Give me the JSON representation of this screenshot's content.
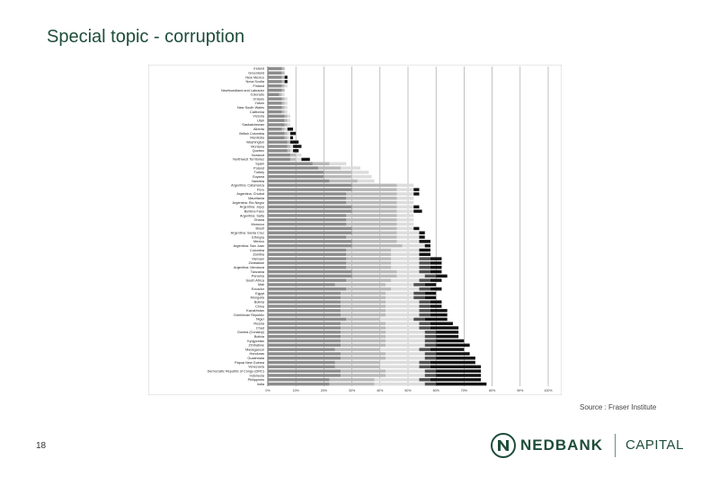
{
  "slide": {
    "title": "Special topic - corruption",
    "source": "Source : Fraser Institute",
    "page_number": "18"
  },
  "brand": {
    "name": "NEDBANK",
    "division": "CAPITAL",
    "color": "#1f4d3b",
    "icon": "nedbank-n-logo"
  },
  "chart_data": {
    "type": "bar",
    "orientation": "horizontal",
    "stacked": true,
    "title": "",
    "xlabel": "",
    "ylabel": "",
    "xlim": [
      0,
      100
    ],
    "x_ticks": [
      "0%",
      "10%",
      "20%",
      "30%",
      "40%",
      "50%",
      "60%",
      "70%",
      "80%",
      "90%",
      "100%"
    ],
    "grid": true,
    "legend": "none",
    "segment_colors": [
      "#8c8c8c",
      "#b8b8b8",
      "#dcdcdc",
      "#505050",
      "#141414"
    ],
    "categories": [
      "Ireland",
      "Greenland",
      "New Mexico",
      "Nova Scotia",
      "Finland",
      "Newfoundland and Labrador",
      "Colorado",
      "Ontario",
      "Yukon",
      "New South Wales",
      "California",
      "Victoria",
      "Utah",
      "Saskatchewan",
      "Alberta",
      "British Columbia",
      "Manitoba",
      "Washington",
      "Montana",
      "Quebec",
      "Nunavut",
      "Northwest Territories",
      "Spain",
      "Poland",
      "Turkey",
      "Guyana",
      "Namibia",
      "Argentina: Catamarca",
      "Peru",
      "Argentina: Chubut",
      "Mauritania",
      "Argentina: Rio Negro",
      "Argentina: Jujuy",
      "Burkina Faso",
      "Argentina: Salta",
      "Ghana",
      "Morocco",
      "Brazil",
      "Argentina: Santa Cruz",
      "Ethiopia",
      "Mexico",
      "Argentina: San Juan",
      "Colombia",
      "Zambia",
      "Vietnam",
      "Zimbabwe",
      "Argentina: Mendoza",
      "Tanzania",
      "Panama",
      "South Africa",
      "Mali",
      "Ecuador",
      "Egypt",
      "Mongolia",
      "Bolivia",
      "China",
      "Kazakhstan",
      "Dominican Republic",
      "Niger",
      "Russia",
      "Chad",
      "Guinea (Conakry)",
      "Bolivia",
      "Kyrgyzstan",
      "Zimbabwe",
      "Madagascar",
      "Honduras",
      "Guatemala",
      "Papua New Guinea",
      "Venezuela",
      "Democratic Republic of Congo (DRC)",
      "Indonesia",
      "Philippines",
      "India"
    ],
    "series": [
      {
        "values": [
          5,
          5,
          5,
          5,
          5,
          5,
          4,
          5,
          5,
          5,
          5,
          6,
          6,
          6,
          5,
          6,
          6,
          7,
          7,
          7,
          8,
          8,
          16,
          18,
          20,
          20,
          22,
          30,
          30,
          28,
          28,
          28,
          30,
          30,
          28,
          28,
          28,
          30,
          30,
          28,
          30,
          30,
          28,
          28,
          28,
          28,
          28,
          30,
          30,
          28,
          24,
          28,
          26,
          26,
          26,
          26,
          26,
          26,
          28,
          26,
          26,
          26,
          26,
          26,
          26,
          24,
          26,
          26,
          24,
          24,
          26,
          26,
          22,
          22
        ]
      },
      {
        "values": [
          1,
          1,
          1,
          1,
          1,
          1,
          1,
          1,
          1,
          1,
          1,
          1,
          1,
          1,
          1,
          1,
          1,
          1,
          1,
          1,
          2,
          2,
          6,
          8,
          10,
          10,
          10,
          16,
          16,
          18,
          18,
          18,
          16,
          16,
          18,
          18,
          18,
          16,
          16,
          18,
          16,
          18,
          16,
          16,
          16,
          16,
          16,
          16,
          16,
          16,
          18,
          16,
          16,
          16,
          16,
          16,
          16,
          16,
          12,
          16,
          16,
          16,
          16,
          16,
          16,
          16,
          16,
          16,
          16,
          16,
          16,
          16,
          16,
          16
        ]
      },
      {
        "values": [
          0,
          0,
          0,
          0,
          1,
          0,
          1,
          1,
          1,
          1,
          1,
          1,
          1,
          1,
          1,
          1,
          1,
          0,
          1,
          1,
          2,
          2,
          6,
          7,
          6,
          7,
          6,
          6,
          6,
          6,
          6,
          6,
          6,
          6,
          6,
          6,
          6,
          6,
          8,
          8,
          8,
          8,
          10,
          10,
          10,
          10,
          10,
          8,
          10,
          10,
          10,
          10,
          10,
          10,
          12,
          12,
          12,
          12,
          12,
          12,
          12,
          14,
          14,
          14,
          14,
          14,
          14,
          14,
          14,
          14,
          14,
          14,
          16,
          18
        ]
      },
      {
        "values": [
          0,
          0,
          0,
          0,
          0,
          0,
          0,
          0,
          0,
          0,
          0,
          0,
          0,
          0,
          0,
          0,
          0,
          0,
          0,
          0,
          0,
          0,
          0,
          0,
          0,
          0,
          0,
          0,
          0,
          0,
          0,
          0,
          0,
          0,
          0,
          0,
          0,
          0,
          0,
          0,
          0,
          0,
          0,
          0,
          4,
          4,
          4,
          4,
          4,
          4,
          4,
          4,
          4,
          4,
          4,
          4,
          4,
          4,
          4,
          4,
          4,
          4,
          4,
          4,
          4,
          4,
          4,
          4,
          4,
          4,
          4,
          4,
          4,
          4
        ]
      },
      {
        "values": [
          0,
          0,
          1,
          1,
          0,
          0,
          0,
          0,
          0,
          0,
          0,
          0,
          0,
          0,
          2,
          2,
          1,
          3,
          3,
          2,
          0,
          3,
          0,
          0,
          0,
          0,
          0,
          0,
          2,
          2,
          0,
          0,
          2,
          3,
          0,
          0,
          0,
          2,
          2,
          2,
          4,
          2,
          4,
          4,
          4,
          4,
          4,
          4,
          4,
          4,
          4,
          4,
          4,
          4,
          4,
          4,
          6,
          6,
          8,
          8,
          10,
          8,
          8,
          10,
          12,
          12,
          12,
          14,
          16,
          18,
          16,
          16,
          18,
          18
        ]
      }
    ]
  }
}
